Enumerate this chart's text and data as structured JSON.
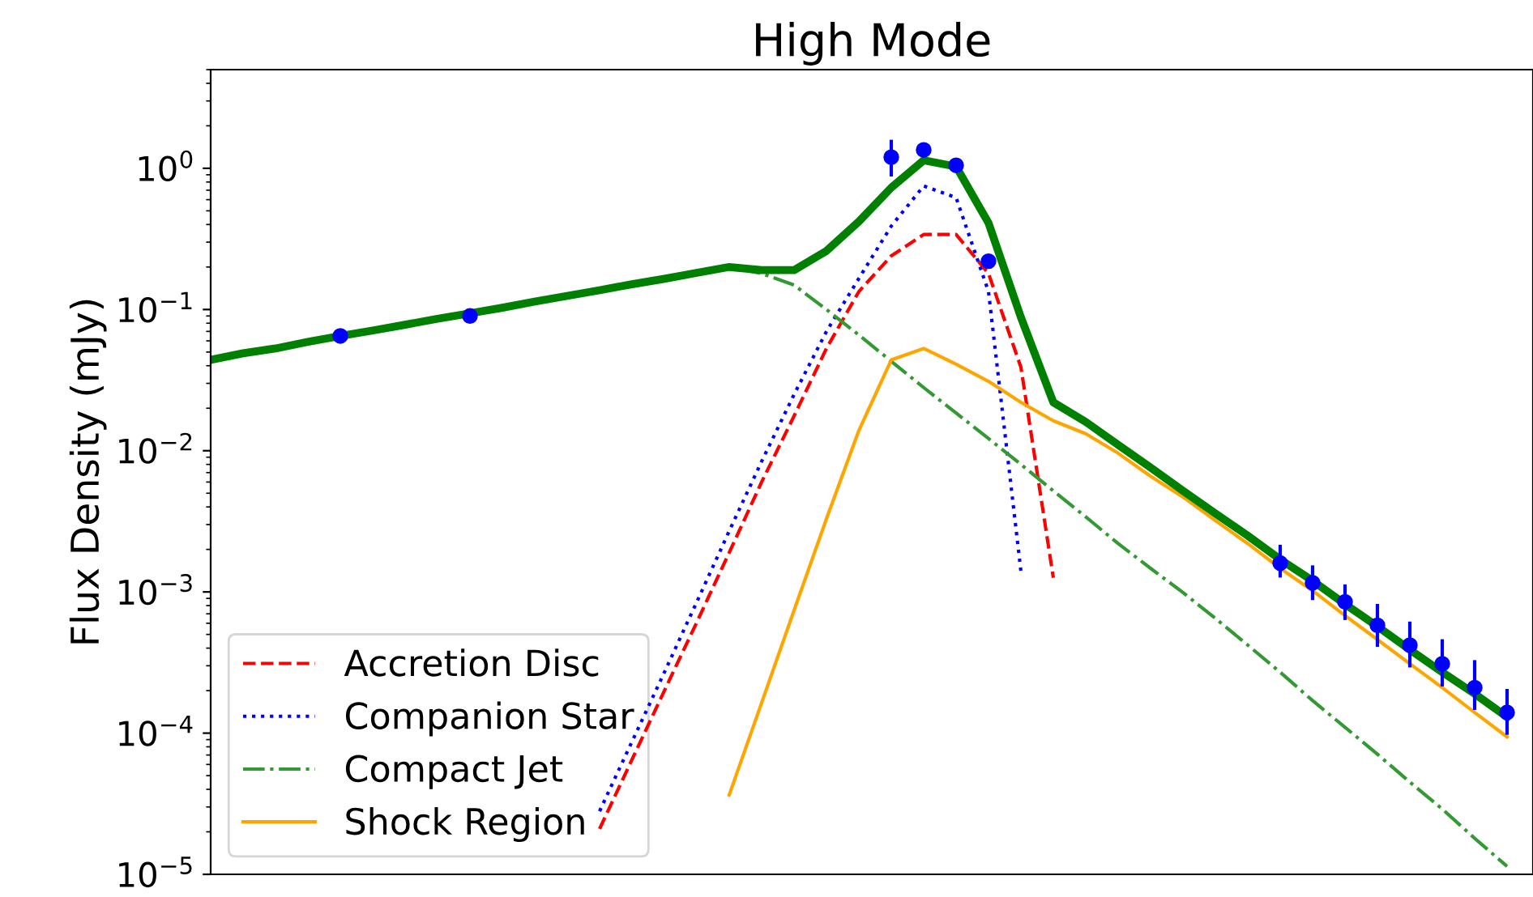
{
  "chart_data": {
    "type": "line",
    "title": "High Mode",
    "ylabel": "Flux Density (mJy)",
    "log": "y",
    "ylim": [
      1e-05,
      5
    ],
    "yticks": [
      {
        "value": 1e-05,
        "label": "10$^{−5}$"
      },
      {
        "value": 0.0001,
        "label": "10$^{−4}$"
      },
      {
        "value": 0.001,
        "label": "10$^{−3}$"
      },
      {
        "value": 0.01,
        "label": "10$^{−2}$"
      },
      {
        "value": 0.1,
        "label": "10$^{−1}$"
      },
      {
        "value": 1,
        "label": "10$^{0}$"
      }
    ],
    "categories": [
      null,
      null,
      null,
      null,
      null,
      null,
      null,
      null,
      null,
      null,
      null,
      null,
      null,
      null,
      null,
      null,
      null,
      null,
      null,
      null,
      null,
      null,
      null,
      null,
      null,
      null,
      null,
      null,
      null,
      null,
      null,
      null,
      null,
      null,
      null,
      null,
      null,
      null,
      null,
      null,
      null
    ],
    "grid": false,
    "legend": "bottom left",
    "series": [
      {
        "name": "Accretion Disc",
        "color": "#ff0000",
        "line_style": "dashed",
        "values": [
          null,
          null,
          null,
          null,
          null,
          null,
          null,
          null,
          null,
          null,
          null,
          null,
          2.1e-05,
          6.5e-05,
          0.0002,
          0.00061,
          0.0019,
          0.006,
          0.0176,
          0.053,
          0.134,
          0.24,
          0.34,
          0.34,
          0.18,
          0.039,
          0.00126,
          null,
          null,
          null,
          null,
          null,
          null,
          null,
          null,
          null,
          null,
          null,
          null,
          null,
          null
        ]
      },
      {
        "name": "Companion Star",
        "color": "#0000ff",
        "line_style": "dotted",
        "values": [
          null,
          null,
          null,
          null,
          null,
          null,
          null,
          null,
          null,
          null,
          null,
          null,
          2.8e-05,
          8.7e-05,
          0.00027,
          0.00085,
          0.0027,
          0.0084,
          0.025,
          0.07,
          0.166,
          0.39,
          0.75,
          0.62,
          0.134,
          0.0014,
          null,
          null,
          null,
          null,
          null,
          null,
          null,
          null,
          null,
          null,
          null,
          null,
          null,
          null,
          null
        ]
      },
      {
        "name": "Compact Jet",
        "color": "#339933",
        "line_style": "dashdot",
        "values": [
          0.044,
          0.049,
          0.053,
          0.059,
          0.065,
          0.071,
          0.078,
          0.086,
          0.094,
          0.103,
          0.114,
          0.125,
          0.137,
          0.151,
          0.165,
          0.182,
          0.2,
          0.18,
          0.149,
          0.1,
          0.066,
          0.043,
          0.028,
          0.0185,
          0.0122,
          0.008,
          0.0052,
          0.0034,
          0.0022,
          0.00147,
          0.00099,
          0.00065,
          0.00042,
          0.00027,
          0.00017,
          0.00011,
          7.1e-05,
          4.5e-05,
          2.9e-05,
          1.8e-05,
          1.14e-05
        ]
      },
      {
        "name": "Shock Region",
        "color": "#ffa500",
        "line_style": "solid",
        "values": [
          null,
          null,
          null,
          null,
          null,
          null,
          null,
          null,
          null,
          null,
          null,
          null,
          null,
          null,
          null,
          null,
          3.65e-05,
          0.000164,
          0.00074,
          0.0033,
          0.0139,
          0.044,
          0.053,
          0.041,
          0.031,
          0.022,
          0.0163,
          0.0132,
          0.0096,
          0.0066,
          0.0047,
          0.0032,
          0.0022,
          0.00147,
          0.00102,
          0.00068,
          0.00046,
          0.00031,
          0.00021,
          0.00014,
          9.4e-05
        ]
      },
      {
        "color": "#008000",
        "line_style": "solid",
        "values": [
          0.044,
          0.049,
          0.053,
          0.059,
          0.065,
          0.071,
          0.078,
          0.086,
          0.094,
          0.103,
          0.114,
          0.125,
          0.137,
          0.151,
          0.165,
          0.182,
          0.2,
          0.19,
          0.19,
          0.26,
          0.42,
          0.73,
          1.14,
          1.03,
          0.41,
          0.088,
          0.022,
          0.016,
          0.011,
          0.0076,
          0.0052,
          0.0036,
          0.0025,
          0.0017,
          0.0012,
          0.00082,
          0.00057,
          0.00039,
          0.00027,
          0.00019,
          0.00013
        ]
      },
      {
        "type": "scatter",
        "color": "#0000ff",
        "marker": "circle",
        "values": [
          null,
          null,
          null,
          null,
          0.065,
          null,
          null,
          null,
          0.09,
          null,
          null,
          null,
          null,
          null,
          null,
          null,
          null,
          null,
          null,
          null,
          null,
          1.2,
          1.35,
          1.05,
          0.22,
          null,
          null,
          null,
          null,
          null,
          null,
          null,
          null,
          0.0016,
          0.00116,
          0.00085,
          0.00058,
          0.00042,
          0.00031,
          0.00021,
          0.00014
        ],
        "errors": [
          null,
          null,
          null,
          null,
          null,
          null,
          null,
          null,
          null,
          null,
          null,
          null,
          null,
          null,
          null,
          null,
          null,
          null,
          null,
          null,
          null,
          [
            0.9,
            1.55
          ],
          null,
          null,
          null,
          null,
          null,
          null,
          null,
          null,
          null,
          null,
          null,
          [
            0.0013,
            0.0021
          ],
          [
            0.0009,
            0.0015
          ],
          [
            0.00065,
            0.0011
          ],
          [
            0.00042,
            0.0008
          ],
          [
            0.0003,
            0.0006
          ],
          [
            0.00022,
            0.00045
          ],
          [
            0.00015,
            0.00032
          ],
          [
            0.0001,
            0.0002
          ]
        ]
      }
    ]
  }
}
